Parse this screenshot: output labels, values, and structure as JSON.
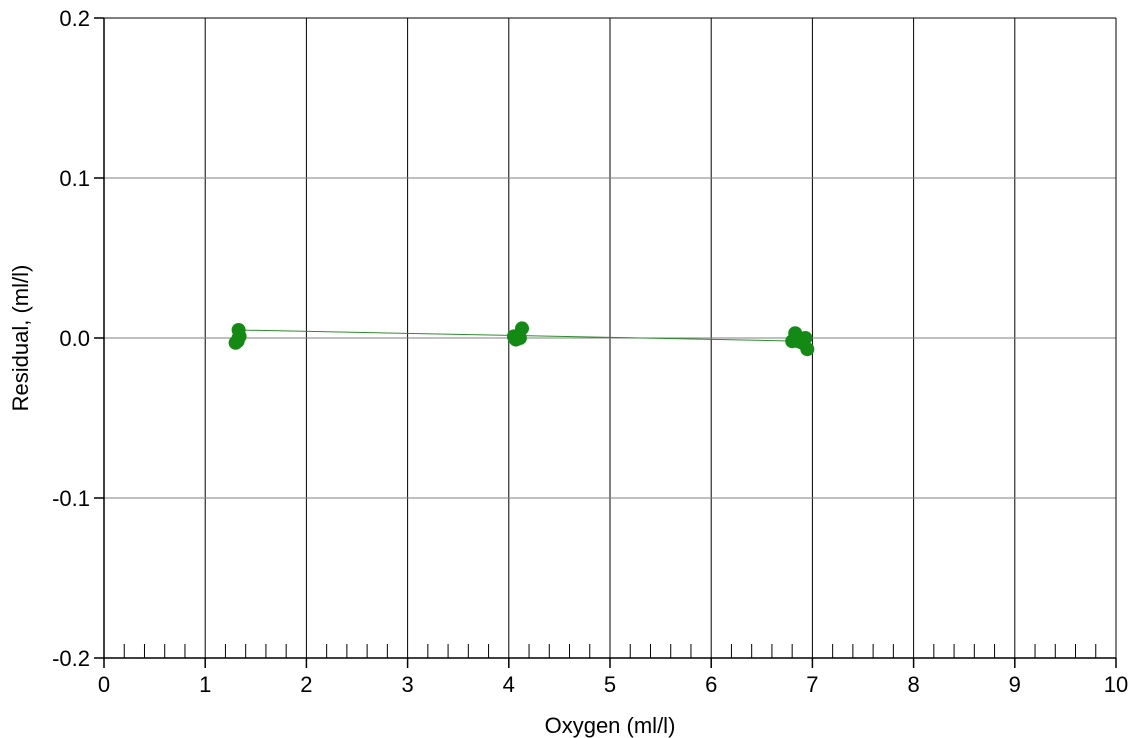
{
  "chart_data": {
    "type": "scatter",
    "xlabel": "Oxygen (ml/l)",
    "ylabel": "Residual, (ml/l)",
    "xlim": [
      0,
      10
    ],
    "ylim": [
      -0.2,
      0.2
    ],
    "x_ticks": [
      "0",
      "1",
      "2",
      "3",
      "4",
      "5",
      "6",
      "7",
      "8",
      "9",
      "10"
    ],
    "y_ticks": [
      "-0.2",
      "-0.1",
      "0.0",
      "0.1",
      "0.2"
    ],
    "grid": true,
    "colors": {
      "series": "#138a13",
      "line": "#2e8b2e",
      "grid_vertical": "#000000",
      "grid_horizontal": "#808080"
    },
    "series": [
      {
        "points": [
          [
            1.3,
            -0.003
          ],
          [
            1.32,
            -0.002
          ],
          [
            1.33,
            0.0
          ],
          [
            1.34,
            0.001
          ],
          [
            1.33,
            0.005
          ],
          [
            4.05,
            0.001
          ],
          [
            4.07,
            -0.001
          ],
          [
            4.1,
            0.0
          ],
          [
            4.11,
            0.0
          ],
          [
            4.13,
            0.006
          ],
          [
            6.8,
            -0.002
          ],
          [
            6.83,
            0.003
          ],
          [
            6.86,
            -0.002
          ],
          [
            6.9,
            -0.003
          ],
          [
            6.93,
            0.0
          ],
          [
            6.95,
            -0.007
          ]
        ],
        "fit_line": [
          [
            1.33,
            0.005
          ],
          [
            4.13,
            0.0015
          ],
          [
            6.9,
            -0.002
          ]
        ]
      }
    ]
  }
}
